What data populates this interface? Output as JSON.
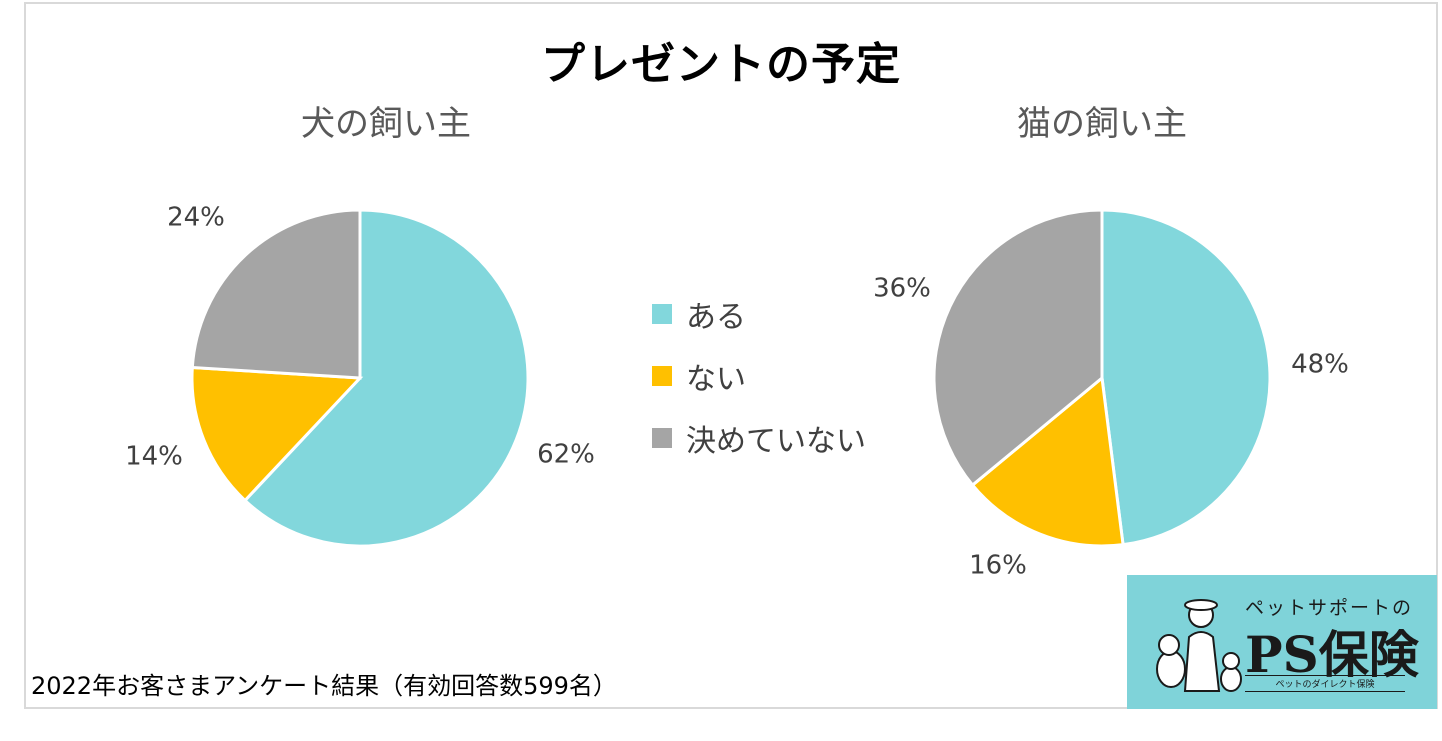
{
  "title": "プレゼントの予定",
  "footnote": "2022年お客さまアンケート結果（有効回答数599名）",
  "legend": [
    {
      "label": "ある",
      "color": "#82d7dc"
    },
    {
      "label": "ない",
      "color": "#ffc000"
    },
    {
      "label": "決めていない",
      "color": "#a5a5a5"
    }
  ],
  "logo": {
    "tagline": "ペットサポートの",
    "brand": "PS保険",
    "sub": "ペットのダイレクト保険"
  },
  "chart_data": [
    {
      "type": "pie",
      "title": "犬の飼い主",
      "categories": [
        "ある",
        "ない",
        "決めていない"
      ],
      "values": [
        62,
        14,
        24
      ],
      "labels": [
        "62%",
        "14%",
        "24%"
      ]
    },
    {
      "type": "pie",
      "title": "猫の飼い主",
      "categories": [
        "ある",
        "ない",
        "決めていない"
      ],
      "values": [
        48,
        16,
        36
      ],
      "labels": [
        "48%",
        "16%",
        "36%"
      ]
    }
  ]
}
